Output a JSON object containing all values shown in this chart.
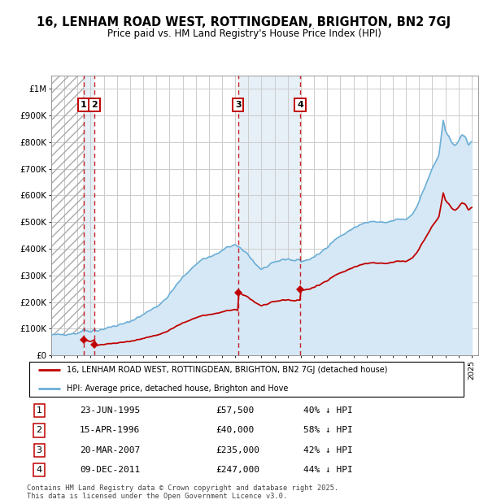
{
  "title": "16, LENHAM ROAD WEST, ROTTINGDEAN, BRIGHTON, BN2 7GJ",
  "subtitle": "Price paid vs. HM Land Registry's House Price Index (HPI)",
  "ylim": [
    0,
    1050000
  ],
  "yticks": [
    0,
    100000,
    200000,
    300000,
    400000,
    500000,
    600000,
    700000,
    800000,
    900000,
    1000000
  ],
  "ytick_labels": [
    "£0",
    "£100K",
    "£200K",
    "£300K",
    "£400K",
    "£500K",
    "£600K",
    "£700K",
    "£800K",
    "£900K",
    "£1M"
  ],
  "xlim_start": 1993.0,
  "xlim_end": 2025.5,
  "hpi_color": "#6baed6",
  "price_color": "#c00000",
  "hpi_fill_color": "#d6e8f5",
  "grid_color": "#cccccc",
  "transactions": [
    {
      "id": 1,
      "date_str": "23-JUN-1995",
      "date_num": 1995.47,
      "price": 57500,
      "pct": "40%"
    },
    {
      "id": 2,
      "date_str": "15-APR-1996",
      "date_num": 1996.29,
      "price": 40000,
      "pct": "58%"
    },
    {
      "id": 3,
      "date_str": "20-MAR-2007",
      "date_num": 2007.22,
      "price": 235000,
      "pct": "42%"
    },
    {
      "id": 4,
      "date_str": "09-DEC-2011",
      "date_num": 2011.94,
      "price": 247000,
      "pct": "44%"
    }
  ],
  "legend_label_red": "16, LENHAM ROAD WEST, ROTTINGDEAN, BRIGHTON, BN2 7GJ (detached house)",
  "legend_label_blue": "HPI: Average price, detached house, Brighton and Hove",
  "footer": "Contains HM Land Registry data © Crown copyright and database right 2025.\nThis data is licensed under the Open Government Licence v3.0."
}
